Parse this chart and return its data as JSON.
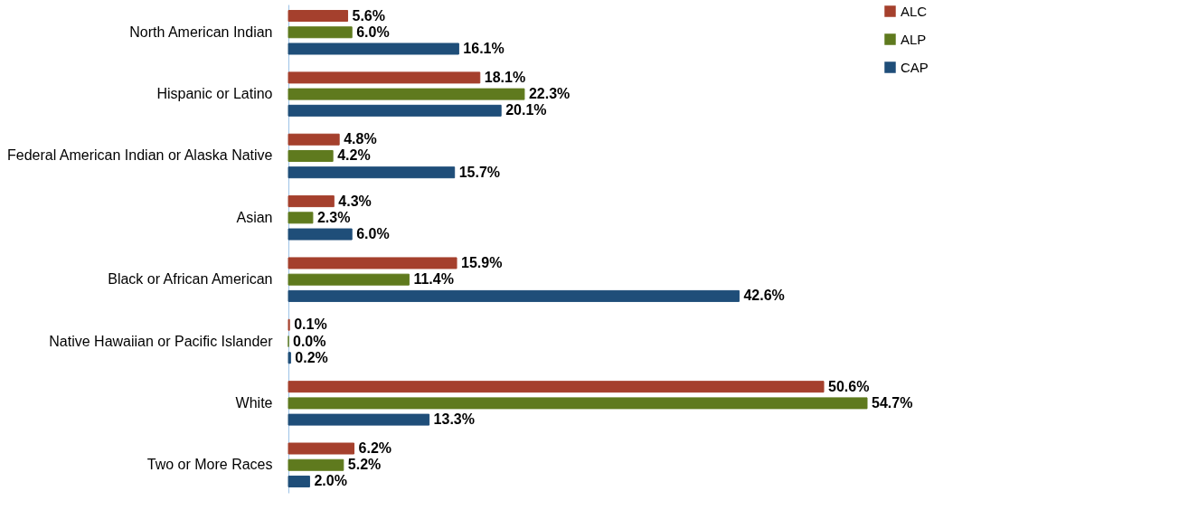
{
  "chart_data": {
    "type": "bar",
    "orientation": "horizontal",
    "categories": [
      "North American Indian",
      "Hispanic or Latino",
      "Federal American Indian or Alaska Native",
      "Asian",
      "Black or African American",
      "Native Hawaiian or Pacific Islander",
      "White",
      "Two or More Races"
    ],
    "series": [
      {
        "name": "ALC",
        "color": "#a5402d",
        "values": [
          5.6,
          18.1,
          4.8,
          4.3,
          15.9,
          0.1,
          50.6,
          6.2
        ],
        "value_labels": [
          "5.6%",
          "18.1%",
          "4.8%",
          "4.3%",
          "15.9%",
          "0.1%",
          "50.6%",
          "6.2%"
        ]
      },
      {
        "name": "ALP",
        "color": "#5f7a1e",
        "values": [
          6.0,
          22.3,
          4.2,
          2.3,
          11.4,
          0.0,
          54.7,
          5.2
        ],
        "value_labels": [
          "6.0%",
          "22.3%",
          "4.2%",
          "2.3%",
          "11.4%",
          "0.0%",
          "54.7%",
          "5.2%"
        ]
      },
      {
        "name": "CAP",
        "color": "#1f4e79",
        "values": [
          16.1,
          20.1,
          15.7,
          6.0,
          42.6,
          0.2,
          13.3,
          2.0
        ],
        "value_labels": [
          "16.1%",
          "20.1%",
          "15.7%",
          "6.0%",
          "42.6%",
          "0.2%",
          "13.3%",
          "2.0%"
        ]
      }
    ],
    "legend": "right",
    "grid": false
  }
}
